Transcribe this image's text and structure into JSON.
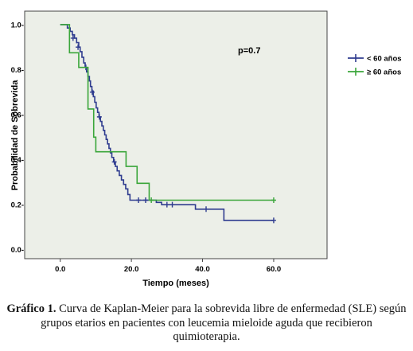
{
  "chart_data": {
    "type": "line",
    "xlabel": "Tiempo (meses)",
    "ylabel": "Probabilidad de Sobrevida",
    "xlim": [
      -10,
      75
    ],
    "ylim": [
      -0.04,
      1.06
    ],
    "xticks": [
      0,
      20,
      40,
      60
    ],
    "xtick_labels": [
      "0.0",
      "20.0",
      "40.0",
      "60.0"
    ],
    "yticks": [
      0,
      0.2,
      0.4,
      0.6,
      0.8,
      1.0
    ],
    "ytick_labels": [
      "0.0-",
      "0.2-",
      "0.4-",
      "0.6-",
      "0.8-",
      "1.0-"
    ],
    "annotation": "p=0.7",
    "plot_background": "#ecefe8",
    "legend_placement": "right-top",
    "series": [
      {
        "name": "< 60 años",
        "color": "#2f3c8f",
        "steps": [
          [
            0,
            1.0
          ],
          [
            2,
            0.985
          ],
          [
            2.8,
            0.97
          ],
          [
            3.4,
            0.955
          ],
          [
            4,
            0.94
          ],
          [
            4.6,
            0.92
          ],
          [
            5.2,
            0.9
          ],
          [
            5.6,
            0.88
          ],
          [
            6.1,
            0.855
          ],
          [
            6.6,
            0.83
          ],
          [
            7,
            0.81
          ],
          [
            7.4,
            0.79
          ],
          [
            7.8,
            0.77
          ],
          [
            8.2,
            0.75
          ],
          [
            8.5,
            0.725
          ],
          [
            8.9,
            0.705
          ],
          [
            9.3,
            0.68
          ],
          [
            9.7,
            0.655
          ],
          [
            10.1,
            0.63
          ],
          [
            10.5,
            0.61
          ],
          [
            10.9,
            0.59
          ],
          [
            11.3,
            0.57
          ],
          [
            11.7,
            0.55
          ],
          [
            12.1,
            0.53
          ],
          [
            12.5,
            0.51
          ],
          [
            12.9,
            0.49
          ],
          [
            13.3,
            0.47
          ],
          [
            13.7,
            0.45
          ],
          [
            14.1,
            0.43
          ],
          [
            14.5,
            0.41
          ],
          [
            15,
            0.39
          ],
          [
            15.5,
            0.37
          ],
          [
            16,
            0.35
          ],
          [
            16.6,
            0.33
          ],
          [
            17.2,
            0.31
          ],
          [
            17.8,
            0.29
          ],
          [
            18.4,
            0.27
          ],
          [
            19,
            0.245
          ],
          [
            19.6,
            0.22
          ],
          [
            27,
            0.21
          ],
          [
            28.5,
            0.2
          ],
          [
            38,
            0.18
          ],
          [
            46,
            0.13
          ],
          [
            60,
            0.13
          ]
        ],
        "censored": [
          [
            3.6,
            0.94
          ],
          [
            5.0,
            0.9
          ],
          [
            7.2,
            0.81
          ],
          [
            9.0,
            0.7
          ],
          [
            11.0,
            0.59
          ],
          [
            15.2,
            0.39
          ],
          [
            22,
            0.22
          ],
          [
            24,
            0.22
          ],
          [
            30,
            0.2
          ],
          [
            31.5,
            0.2
          ],
          [
            41,
            0.18
          ],
          [
            60,
            0.13
          ]
        ]
      },
      {
        "name": "≥ 60 años",
        "color": "#3aa63a",
        "steps": [
          [
            0,
            1.0
          ],
          [
            2.6,
            0.875
          ],
          [
            5.2,
            0.81
          ],
          [
            7.8,
            0.625
          ],
          [
            9.4,
            0.5
          ],
          [
            10,
            0.435
          ],
          [
            18.5,
            0.37
          ],
          [
            21.6,
            0.295
          ],
          [
            25,
            0.22
          ],
          [
            60,
            0.22
          ]
        ],
        "censored": [
          [
            25.6,
            0.22
          ],
          [
            60,
            0.22
          ]
        ]
      }
    ]
  },
  "caption": {
    "label": "Gráfico 1.",
    "text": " Curva de Kaplan-Meier para la sobrevida libre de enfermedad (SLE) según grupos etarios en pacientes con leucemia mieloide aguda que recibieron quimioterapia."
  }
}
